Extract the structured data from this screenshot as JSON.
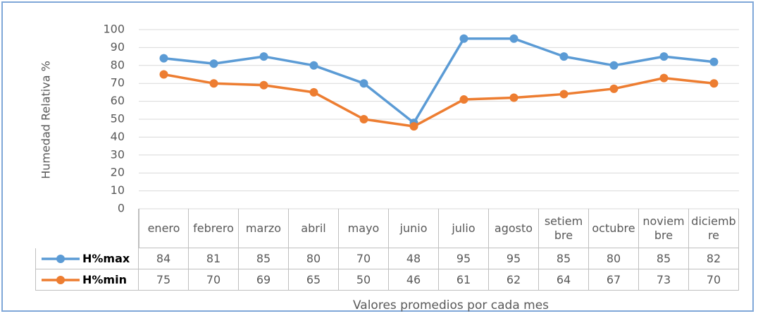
{
  "chart_data": {
    "type": "line",
    "categories": [
      "enero",
      "febrero",
      "marzo",
      "abril",
      "mayo",
      "junio",
      "julio",
      "agosto",
      "setiembre",
      "octubre",
      "noviembre",
      "diciembre"
    ],
    "series": [
      {
        "name": "H%max",
        "color": "#5b9bd5",
        "values": [
          84,
          81,
          85,
          80,
          70,
          48,
          95,
          95,
          85,
          80,
          85,
          82
        ]
      },
      {
        "name": "H%min",
        "color": "#ed7d31",
        "values": [
          75,
          70,
          69,
          65,
          50,
          46,
          61,
          62,
          64,
          67,
          73,
          70
        ]
      }
    ],
    "ylim": [
      0,
      100
    ],
    "yticks": [
      0,
      10,
      20,
      30,
      40,
      50,
      60,
      70,
      80,
      90,
      100
    ],
    "ylabel": "Humedad Relativa %",
    "xlabel": "Valores promedios por cada mes",
    "grid": true
  }
}
